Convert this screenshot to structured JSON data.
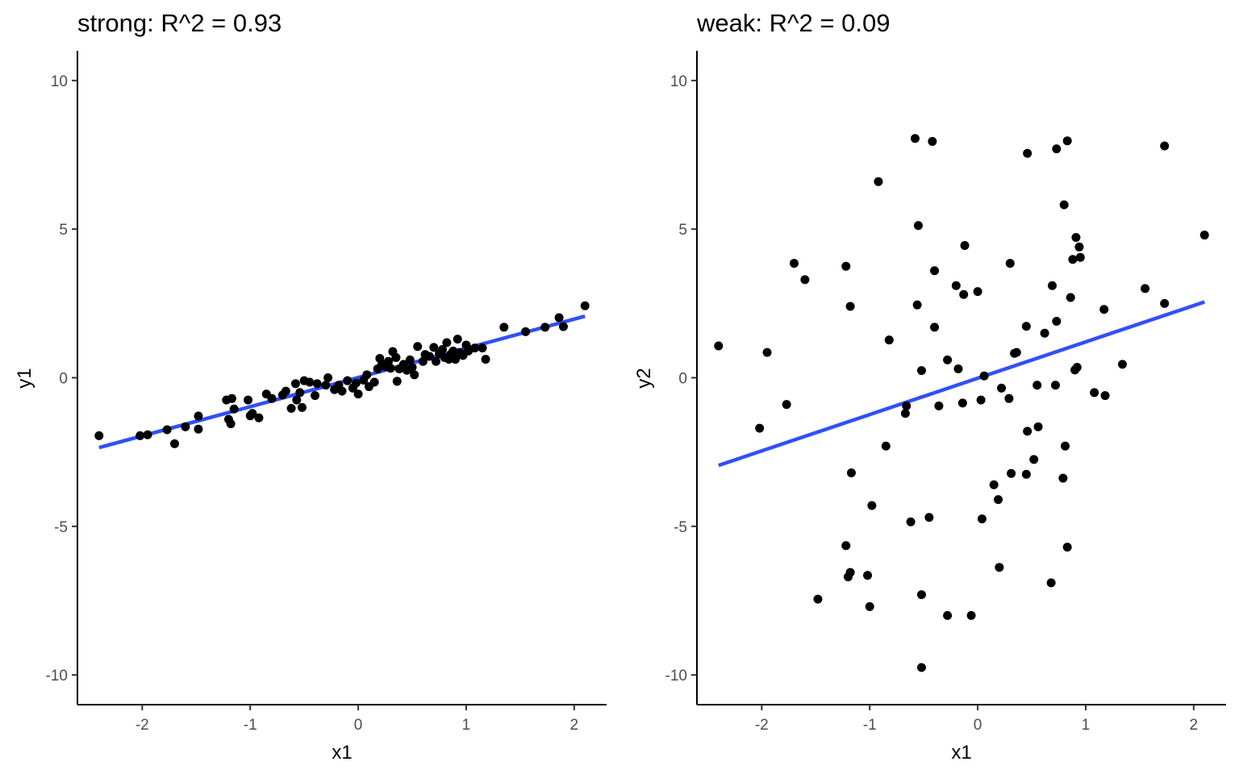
{
  "chart_data": [
    {
      "type": "scatter",
      "title": "strong: R^2 = 0.93",
      "xlabel": "x1",
      "ylabel": "y1",
      "xlim": [
        -2.6,
        2.3
      ],
      "ylim": [
        -11,
        11
      ],
      "xticks": [
        -2,
        -1,
        0,
        1,
        2
      ],
      "yticks": [
        -10,
        -5,
        0,
        5,
        10
      ],
      "xtick_labels": [
        "-2",
        "-1",
        "0",
        "1",
        "2"
      ],
      "ytick_labels": [
        "-10",
        "-5",
        "0",
        "5",
        "10"
      ],
      "grid": false,
      "fit_line": {
        "color": "#3050f8",
        "x": [
          -2.4,
          2.1
        ],
        "y": [
          -2.35,
          2.07
        ]
      },
      "points": [
        [
          -2.4,
          -1.95
        ],
        [
          -2.02,
          -1.95
        ],
        [
          -1.95,
          -1.92
        ],
        [
          -1.77,
          -1.75
        ],
        [
          -1.7,
          -2.22
        ],
        [
          -1.6,
          -1.65
        ],
        [
          -1.48,
          -1.29
        ],
        [
          -1.48,
          -1.73
        ],
        [
          -1.22,
          -0.75
        ],
        [
          -1.2,
          -1.4
        ],
        [
          -1.18,
          -1.55
        ],
        [
          -1.17,
          -0.7
        ],
        [
          -1.15,
          -1.05
        ],
        [
          -1.02,
          -0.75
        ],
        [
          -1.0,
          -1.28
        ],
        [
          -0.98,
          -1.2
        ],
        [
          -0.92,
          -1.35
        ],
        [
          -0.85,
          -0.55
        ],
        [
          -0.8,
          -0.7
        ],
        [
          -0.7,
          -0.58
        ],
        [
          -0.67,
          -0.45
        ],
        [
          -0.62,
          -1.03
        ],
        [
          -0.58,
          -0.2
        ],
        [
          -0.57,
          -0.75
        ],
        [
          -0.54,
          -0.5
        ],
        [
          -0.52,
          -1.0
        ],
        [
          -0.5,
          -0.1
        ],
        [
          -0.45,
          -0.15
        ],
        [
          -0.4,
          -0.6
        ],
        [
          -0.38,
          -0.2
        ],
        [
          -0.3,
          -0.25
        ],
        [
          -0.28,
          0.0
        ],
        [
          -0.22,
          -0.4
        ],
        [
          -0.18,
          -0.25
        ],
        [
          -0.15,
          -0.45
        ],
        [
          -0.1,
          -0.1
        ],
        [
          -0.05,
          -0.35
        ],
        [
          -0.02,
          -0.18
        ],
        [
          0.0,
          -0.55
        ],
        [
          0.05,
          -0.08
        ],
        [
          0.08,
          0.1
        ],
        [
          0.1,
          -0.3
        ],
        [
          0.15,
          -0.15
        ],
        [
          0.18,
          0.3
        ],
        [
          0.2,
          0.65
        ],
        [
          0.22,
          0.45
        ],
        [
          0.25,
          0.38
        ],
        [
          0.28,
          0.55
        ],
        [
          0.3,
          0.32
        ],
        [
          0.32,
          0.88
        ],
        [
          0.35,
          0.68
        ],
        [
          0.36,
          -0.12
        ],
        [
          0.38,
          0.3
        ],
        [
          0.42,
          0.45
        ],
        [
          0.45,
          0.25
        ],
        [
          0.48,
          0.6
        ],
        [
          0.5,
          0.35
        ],
        [
          0.52,
          0.1
        ],
        [
          0.55,
          1.05
        ],
        [
          0.6,
          0.55
        ],
        [
          0.62,
          0.78
        ],
        [
          0.66,
          0.72
        ],
        [
          0.7,
          1.02
        ],
        [
          0.72,
          0.55
        ],
        [
          0.75,
          0.8
        ],
        [
          0.78,
          0.95
        ],
        [
          0.8,
          0.68
        ],
        [
          0.82,
          1.18
        ],
        [
          0.84,
          0.62
        ],
        [
          0.86,
          0.8
        ],
        [
          0.88,
          0.9
        ],
        [
          0.9,
          0.62
        ],
        [
          0.92,
          1.3
        ],
        [
          0.94,
          0.85
        ],
        [
          0.97,
          0.75
        ],
        [
          1.0,
          1.1
        ],
        [
          1.02,
          0.9
        ],
        [
          1.08,
          1.0
        ],
        [
          1.15,
          1.0
        ],
        [
          1.18,
          0.62
        ],
        [
          1.35,
          1.7
        ],
        [
          1.55,
          1.55
        ],
        [
          1.73,
          1.7
        ],
        [
          1.86,
          2.02
        ],
        [
          1.9,
          1.72
        ],
        [
          2.1,
          2.42
        ]
      ]
    },
    {
      "type": "scatter",
      "title": "weak: R^2 = 0.09",
      "xlabel": "x1",
      "ylabel": "y2",
      "xlim": [
        -2.6,
        2.3
      ],
      "ylim": [
        -11,
        11
      ],
      "xticks": [
        -2,
        -1,
        0,
        1,
        2
      ],
      "yticks": [
        -10,
        -5,
        0,
        5,
        10
      ],
      "xtick_labels": [
        "-2",
        "-1",
        "0",
        "1",
        "2"
      ],
      "ytick_labels": [
        "-10",
        "-5",
        "0",
        "5",
        "10"
      ],
      "grid": false,
      "fit_line": {
        "color": "#3050f8",
        "x": [
          -2.4,
          2.1
        ],
        "y": [
          -2.95,
          2.55
        ]
      },
      "points": [
        [
          -2.4,
          1.07
        ],
        [
          -2.02,
          -1.7
        ],
        [
          -1.95,
          0.85
        ],
        [
          -1.77,
          -0.9
        ],
        [
          -1.7,
          3.85
        ],
        [
          -1.6,
          3.3
        ],
        [
          -1.48,
          -7.45
        ],
        [
          -1.22,
          3.75
        ],
        [
          -1.22,
          -5.65
        ],
        [
          -1.2,
          -6.7
        ],
        [
          -1.18,
          2.4
        ],
        [
          -1.18,
          -6.55
        ],
        [
          -1.17,
          -3.2
        ],
        [
          -1.02,
          -6.65
        ],
        [
          -1.0,
          -7.7
        ],
        [
          -0.98,
          -4.3
        ],
        [
          -0.92,
          6.6
        ],
        [
          -0.85,
          -2.3
        ],
        [
          -0.82,
          1.27
        ],
        [
          -0.67,
          -1.2
        ],
        [
          -0.66,
          -0.95
        ],
        [
          -0.62,
          -4.85
        ],
        [
          -0.58,
          8.05
        ],
        [
          -0.56,
          2.45
        ],
        [
          -0.55,
          5.12
        ],
        [
          -0.52,
          -7.3
        ],
        [
          -0.52,
          0.24
        ],
        [
          -0.52,
          -9.75
        ],
        [
          -0.45,
          -4.7
        ],
        [
          -0.42,
          7.95
        ],
        [
          -0.4,
          1.7
        ],
        [
          -0.4,
          3.6
        ],
        [
          -0.36,
          -0.95
        ],
        [
          -0.28,
          0.6
        ],
        [
          -0.28,
          -8.0
        ],
        [
          -0.2,
          3.1
        ],
        [
          -0.18,
          0.3
        ],
        [
          -0.14,
          -0.85
        ],
        [
          -0.13,
          2.8
        ],
        [
          -0.12,
          4.45
        ],
        [
          -0.06,
          -8.0
        ],
        [
          0.0,
          2.9
        ],
        [
          0.03,
          -0.75
        ],
        [
          0.04,
          -4.75
        ],
        [
          0.06,
          0.06
        ],
        [
          0.15,
          -3.6
        ],
        [
          0.19,
          -4.1
        ],
        [
          0.2,
          -6.38
        ],
        [
          0.22,
          -0.35
        ],
        [
          0.29,
          -0.7
        ],
        [
          0.3,
          3.85
        ],
        [
          0.31,
          -3.22
        ],
        [
          0.34,
          0.82
        ],
        [
          0.36,
          0.85
        ],
        [
          0.45,
          -3.25
        ],
        [
          0.45,
          1.73
        ],
        [
          0.46,
          7.55
        ],
        [
          0.46,
          -1.8
        ],
        [
          0.52,
          -2.75
        ],
        [
          0.55,
          -0.25
        ],
        [
          0.56,
          -1.65
        ],
        [
          0.62,
          1.5
        ],
        [
          0.68,
          -6.9
        ],
        [
          0.69,
          3.1
        ],
        [
          0.72,
          -0.25
        ],
        [
          0.73,
          7.7
        ],
        [
          0.73,
          1.9
        ],
        [
          0.79,
          -3.38
        ],
        [
          0.8,
          5.82
        ],
        [
          0.81,
          -2.3
        ],
        [
          0.83,
          7.97
        ],
        [
          0.83,
          -5.7
        ],
        [
          0.86,
          2.7
        ],
        [
          0.88,
          3.98
        ],
        [
          0.9,
          0.26
        ],
        [
          0.91,
          4.72
        ],
        [
          0.92,
          0.35
        ],
        [
          0.94,
          4.4
        ],
        [
          0.95,
          4.05
        ],
        [
          1.08,
          -0.5
        ],
        [
          1.17,
          2.3
        ],
        [
          1.18,
          -0.6
        ],
        [
          1.34,
          0.45
        ],
        [
          1.55,
          3.0
        ],
        [
          1.73,
          7.8
        ],
        [
          1.73,
          2.5
        ],
        [
          2.1,
          4.8
        ]
      ]
    }
  ]
}
